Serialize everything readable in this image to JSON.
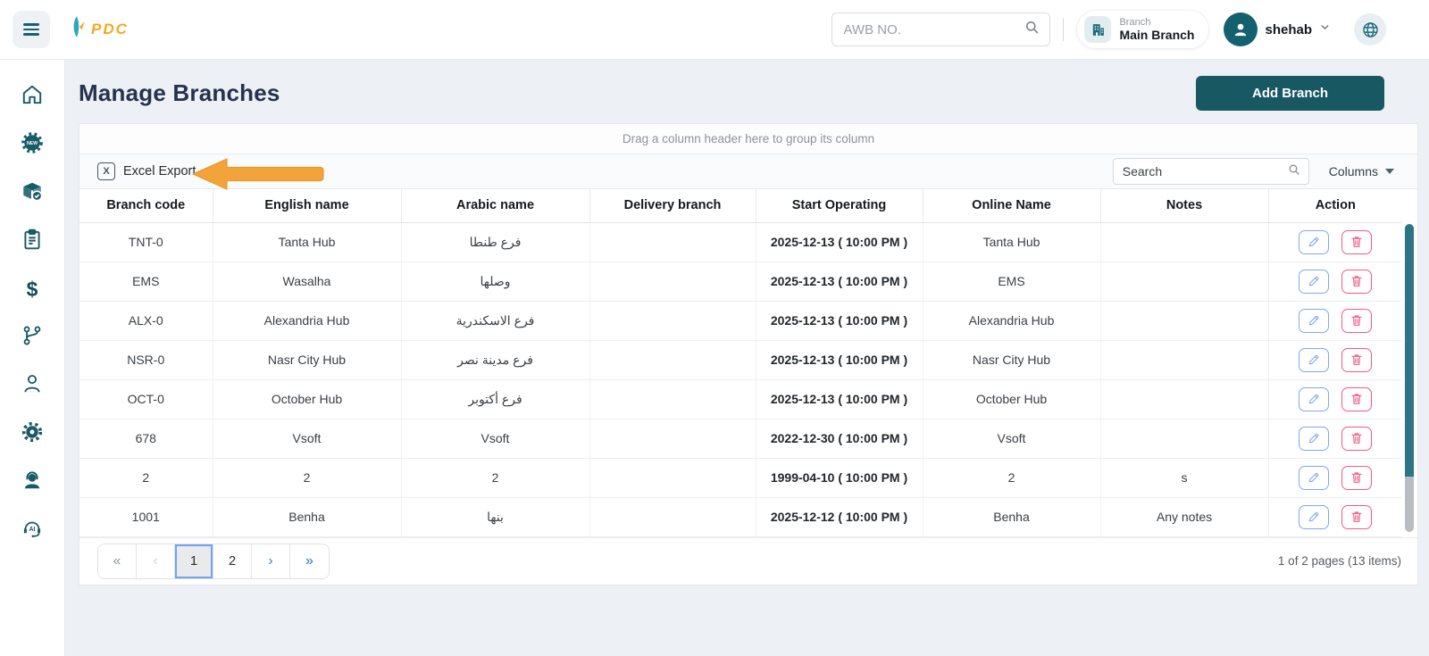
{
  "topbar": {
    "logo_text": "PDC",
    "awb_placeholder": "AWB NO.",
    "branch_label": "Branch",
    "branch_value": "Main Branch",
    "user_name": "shehab"
  },
  "page": {
    "title": "Manage Branches",
    "add_button_label": "Add Branch"
  },
  "grid": {
    "group_hint": "Drag a column header here to group its column",
    "excel_export_label": "Excel Export",
    "excel_icon_glyph": "X",
    "search_placeholder": "Search",
    "columns_label": "Columns",
    "headers": [
      "Branch code",
      "English name",
      "Arabic name",
      "Delivery branch",
      "Start Operating",
      "Online Name",
      "Notes",
      "Action"
    ],
    "rows": [
      {
        "code": "TNT-0",
        "en": "Tanta Hub",
        "ar": "فرع طنطا",
        "delivery": true,
        "start": "2025-12-13 ( 10:00 PM )",
        "online": "Tanta Hub",
        "notes": ""
      },
      {
        "code": "EMS",
        "en": "Wasalha",
        "ar": "وصلها",
        "delivery": true,
        "start": "2025-12-13 ( 10:00 PM )",
        "online": "EMS",
        "notes": ""
      },
      {
        "code": "ALX-0",
        "en": "Alexandria Hub",
        "ar": "فرع الاسكندرية",
        "delivery": true,
        "start": "2025-12-13 ( 10:00 PM )",
        "online": "Alexandria Hub",
        "notes": ""
      },
      {
        "code": "NSR-0",
        "en": "Nasr City Hub",
        "ar": "فرع مدينة نصر",
        "delivery": true,
        "start": "2025-12-13 ( 10:00 PM )",
        "online": "Nasr City Hub",
        "notes": ""
      },
      {
        "code": "OCT-0",
        "en": "October Hub",
        "ar": "فرع أكتوبر",
        "delivery": true,
        "start": "2025-12-13 ( 10:00 PM )",
        "online": "October Hub",
        "notes": ""
      },
      {
        "code": "678",
        "en": "Vsoft",
        "ar": "Vsoft",
        "delivery": true,
        "start": "2022-12-30 ( 10:00 PM )",
        "online": "Vsoft",
        "notes": ""
      },
      {
        "code": "2",
        "en": "2",
        "ar": "2",
        "delivery": true,
        "start": "1999-04-10 ( 10:00 PM )",
        "online": "2",
        "notes": "s"
      },
      {
        "code": "1001",
        "en": "Benha",
        "ar": "بنها",
        "delivery": true,
        "start": "2025-12-12 ( 10:00 PM )",
        "online": "Benha",
        "notes": "Any notes"
      }
    ],
    "pagination": {
      "first_icon": "«",
      "prev_icon": "‹",
      "pages": [
        "1",
        "2"
      ],
      "active_page": "1",
      "next_icon": "›",
      "last_icon": "»",
      "summary": "1 of 2 pages (13 items)"
    }
  },
  "colors": {
    "brand_teal": "#175b68",
    "brand_orange": "#f6a821",
    "add_button_teal": "#185862",
    "edit_blue": "#7ea8f0",
    "delete_pink": "#ee5b86",
    "checkbox_blue": "#7db1f6",
    "arrow_orange": "#f2a43b",
    "scrollbar_teal": "#2e7487"
  }
}
